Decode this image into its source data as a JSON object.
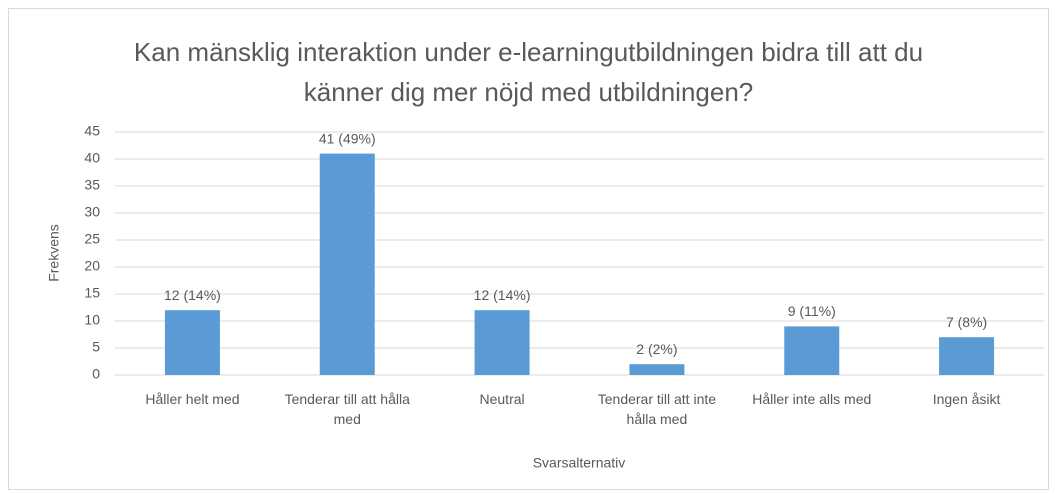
{
  "chart_data": {
    "type": "bar",
    "title": "Kan mänsklig interaktion under e-learningutbildningen bidra till att du känner dig mer nöjd med utbildningen?",
    "xlabel": "Svarsalternativ",
    "ylabel": "Frekvens",
    "categories": [
      "Håller helt med",
      "Tenderar till att hålla med",
      "Neutral",
      "Tenderar till att inte hålla med",
      "Håller inte alls med",
      "Ingen åsikt"
    ],
    "values": [
      12,
      41,
      12,
      2,
      9,
      7
    ],
    "value_labels": [
      "12 (14%)",
      "41 (49%)",
      "12 (14%)",
      "2 (2%)",
      "9 (11%)",
      "7 (8%)"
    ],
    "color": "#5b9bd5",
    "ylim": [
      0,
      45
    ],
    "yticks": [
      0,
      5,
      10,
      15,
      20,
      25,
      30,
      35,
      40,
      45
    ],
    "grid": true
  }
}
